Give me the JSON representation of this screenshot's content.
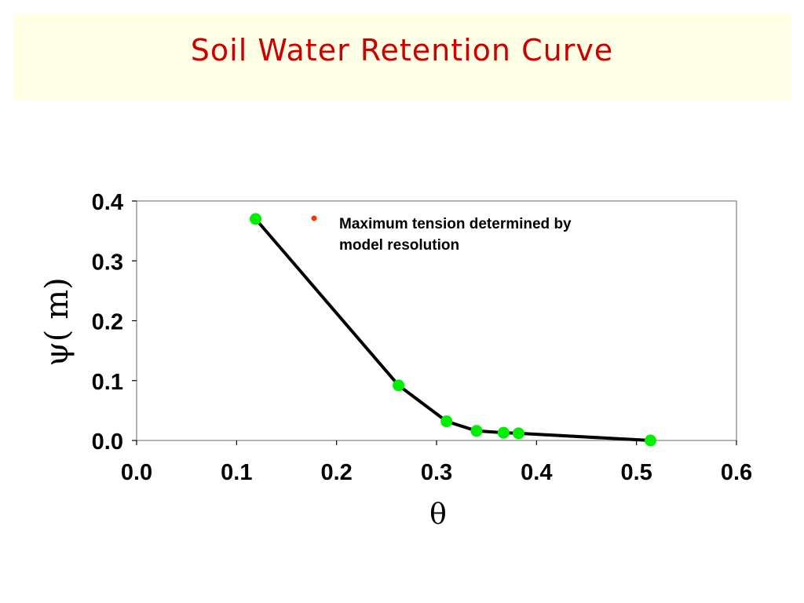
{
  "slide": {
    "title": "Soil Water Retention Curve",
    "title_color": "#cc0000",
    "banner_color": "#ffffe5"
  },
  "chart_data": {
    "type": "line",
    "xlabel": "θ",
    "ylabel": "ψ( m)",
    "xlim": [
      0.0,
      0.6
    ],
    "ylim": [
      0.0,
      0.4
    ],
    "xticks": [
      "0.0",
      "0.1",
      "0.2",
      "0.3",
      "0.4",
      "0.5",
      "0.6"
    ],
    "yticks": [
      "0.0",
      "0.1",
      "0.2",
      "0.3",
      "0.4"
    ],
    "grid": false,
    "series": [
      {
        "line_color": "#000000",
        "marker_color": "#00ee00",
        "x": [
          0.119,
          0.262,
          0.31,
          0.34,
          0.367,
          0.382,
          0.514
        ],
        "y": [
          0.37,
          0.092,
          0.032,
          0.016,
          0.013,
          0.012,
          0.0
        ]
      }
    ],
    "annotation": {
      "bullet_color": "#ff3300",
      "lines": [
        "Maximum tension determined by",
        "model resolution"
      ]
    }
  }
}
